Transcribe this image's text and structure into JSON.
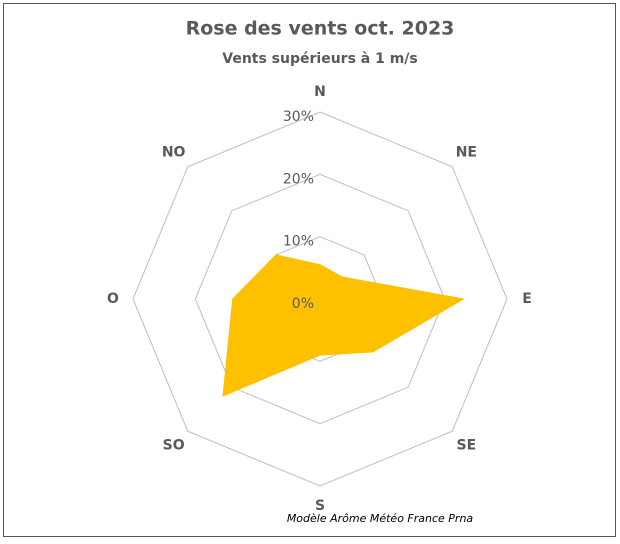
{
  "chart_data": {
    "type": "radar",
    "title": "Rose des vents oct. 2023",
    "subtitle": "Vents supérieurs à 1 m/s",
    "note": "Modèle Arôme Météo France Prna",
    "categories": [
      "N",
      "NE",
      "E",
      "SE",
      "S",
      "SO",
      "O",
      "NO"
    ],
    "series": [
      {
        "color": "#ffc000",
        "values": [
          5.5,
          5,
          23,
          12,
          9,
          22,
          14,
          10
        ]
      }
    ],
    "ylim": [
      0,
      30
    ],
    "yticks": [
      {
        "value": 0,
        "label": "0%"
      },
      {
        "value": 10,
        "label": "10%"
      },
      {
        "value": 20,
        "label": "20%"
      },
      {
        "value": 30,
        "label": "30%"
      }
    ],
    "grid": true
  }
}
